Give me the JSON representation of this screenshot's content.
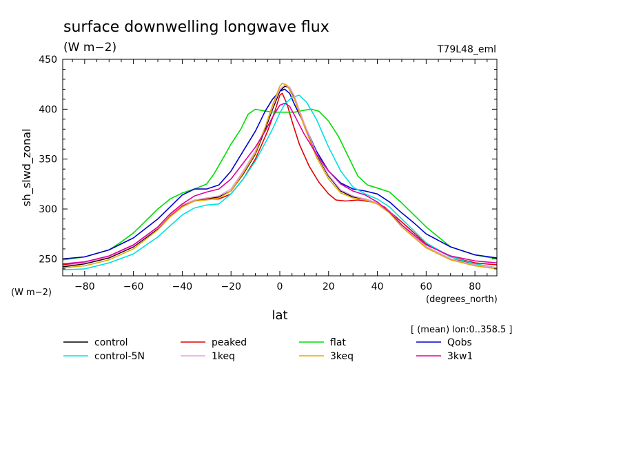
{
  "chart_data": {
    "type": "line",
    "title": "surface downwelling longwave flux",
    "subtitle": "(W m−2)",
    "run_label": "T79L48_eml",
    "ylabel": "sh_slwd_zonal",
    "yunits": "(W m−2)",
    "xlabel": "lat",
    "xunits": "(degrees_north)",
    "note": "[ (mean) lon:0..358.5 ]",
    "xlim": [
      -89,
      89
    ],
    "ylim": [
      233,
      450
    ],
    "xticks": [
      -80,
      -60,
      -40,
      -20,
      0,
      20,
      40,
      60,
      80
    ],
    "yticks": [
      250,
      300,
      350,
      400,
      450
    ],
    "grid": false,
    "legend_position": "bottom",
    "series": [
      {
        "name": "control",
        "color": "#000000",
        "points": [
          [
            -89,
            242
          ],
          [
            -80,
            245
          ],
          [
            -70,
            251
          ],
          [
            -60,
            262
          ],
          [
            -50,
            280
          ],
          [
            -45,
            293
          ],
          [
            -40,
            303
          ],
          [
            -35,
            308
          ],
          [
            -30,
            310
          ],
          [
            -25,
            312
          ],
          [
            -20,
            318
          ],
          [
            -15,
            335
          ],
          [
            -10,
            355
          ],
          [
            -6,
            380
          ],
          [
            -3,
            400
          ],
          [
            0,
            418
          ],
          [
            2,
            423
          ],
          [
            4,
            422
          ],
          [
            6,
            412
          ],
          [
            10,
            385
          ],
          [
            15,
            355
          ],
          [
            20,
            333
          ],
          [
            25,
            318
          ],
          [
            30,
            312
          ],
          [
            35,
            310
          ],
          [
            40,
            306
          ],
          [
            45,
            298
          ],
          [
            50,
            284
          ],
          [
            60,
            262
          ],
          [
            70,
            250
          ],
          [
            80,
            245
          ],
          [
            89,
            241
          ]
        ]
      },
      {
        "name": "peaked",
        "color": "#e00000",
        "points": [
          [
            -89,
            244
          ],
          [
            -80,
            246
          ],
          [
            -70,
            252
          ],
          [
            -60,
            263
          ],
          [
            -50,
            281
          ],
          [
            -45,
            293
          ],
          [
            -40,
            303
          ],
          [
            -35,
            308
          ],
          [
            -30,
            310
          ],
          [
            -25,
            310
          ],
          [
            -20,
            315
          ],
          [
            -15,
            330
          ],
          [
            -10,
            350
          ],
          [
            -5,
            378
          ],
          [
            -2,
            398
          ],
          [
            0,
            414
          ],
          [
            1,
            416
          ],
          [
            3,
            405
          ],
          [
            5,
            388
          ],
          [
            8,
            365
          ],
          [
            12,
            343
          ],
          [
            16,
            327
          ],
          [
            20,
            315
          ],
          [
            23,
            309
          ],
          [
            27,
            308
          ],
          [
            32,
            309
          ],
          [
            38,
            307
          ],
          [
            43,
            302
          ],
          [
            50,
            287
          ],
          [
            60,
            265
          ],
          [
            70,
            252
          ],
          [
            80,
            246
          ],
          [
            89,
            244
          ]
        ]
      },
      {
        "name": "flat",
        "color": "#00dd00",
        "points": [
          [
            -89,
            249
          ],
          [
            -80,
            252
          ],
          [
            -70,
            259
          ],
          [
            -65,
            267
          ],
          [
            -60,
            276
          ],
          [
            -55,
            288
          ],
          [
            -50,
            300
          ],
          [
            -45,
            310
          ],
          [
            -40,
            316
          ],
          [
            -35,
            320
          ],
          [
            -30,
            325
          ],
          [
            -27,
            335
          ],
          [
            -23,
            352
          ],
          [
            -20,
            365
          ],
          [
            -16,
            380
          ],
          [
            -13,
            395
          ],
          [
            -10,
            400
          ],
          [
            -6,
            398
          ],
          [
            -2,
            397
          ],
          [
            0,
            397
          ],
          [
            2,
            397
          ],
          [
            6,
            397
          ],
          [
            10,
            399
          ],
          [
            13,
            400
          ],
          [
            16,
            398
          ],
          [
            20,
            388
          ],
          [
            24,
            373
          ],
          [
            28,
            353
          ],
          [
            32,
            333
          ],
          [
            36,
            324
          ],
          [
            40,
            321
          ],
          [
            45,
            317
          ],
          [
            50,
            306
          ],
          [
            55,
            294
          ],
          [
            60,
            282
          ],
          [
            65,
            272
          ],
          [
            70,
            262
          ],
          [
            80,
            254
          ],
          [
            89,
            250
          ]
        ]
      },
      {
        "name": "Qobs",
        "color": "#0000cc",
        "points": [
          [
            -89,
            250
          ],
          [
            -80,
            252
          ],
          [
            -70,
            259
          ],
          [
            -60,
            271
          ],
          [
            -50,
            290
          ],
          [
            -45,
            302
          ],
          [
            -40,
            314
          ],
          [
            -35,
            320
          ],
          [
            -30,
            320
          ],
          [
            -25,
            324
          ],
          [
            -20,
            338
          ],
          [
            -15,
            358
          ],
          [
            -10,
            378
          ],
          [
            -6,
            398
          ],
          [
            -3,
            410
          ],
          [
            0,
            418
          ],
          [
            2,
            420
          ],
          [
            4,
            416
          ],
          [
            6,
            405
          ],
          [
            10,
            385
          ],
          [
            15,
            358
          ],
          [
            20,
            338
          ],
          [
            25,
            326
          ],
          [
            30,
            320
          ],
          [
            35,
            318
          ],
          [
            40,
            315
          ],
          [
            45,
            307
          ],
          [
            50,
            296
          ],
          [
            55,
            286
          ],
          [
            60,
            275
          ],
          [
            70,
            262
          ],
          [
            80,
            254
          ],
          [
            89,
            251
          ]
        ]
      },
      {
        "name": "control-5N",
        "color": "#00e0e0",
        "points": [
          [
            -89,
            239
          ],
          [
            -80,
            240
          ],
          [
            -70,
            246
          ],
          [
            -60,
            255
          ],
          [
            -50,
            272
          ],
          [
            -45,
            283
          ],
          [
            -40,
            294
          ],
          [
            -35,
            301
          ],
          [
            -30,
            304
          ],
          [
            -25,
            305
          ],
          [
            -20,
            315
          ],
          [
            -15,
            330
          ],
          [
            -10,
            348
          ],
          [
            -6,
            366
          ],
          [
            -3,
            380
          ],
          [
            0,
            396
          ],
          [
            2,
            405
          ],
          [
            5,
            412
          ],
          [
            8,
            414
          ],
          [
            11,
            407
          ],
          [
            15,
            390
          ],
          [
            20,
            362
          ],
          [
            25,
            338
          ],
          [
            30,
            322
          ],
          [
            35,
            315
          ],
          [
            40,
            310
          ],
          [
            45,
            302
          ],
          [
            50,
            290
          ],
          [
            60,
            266
          ],
          [
            70,
            252
          ],
          [
            80,
            245
          ],
          [
            89,
            241
          ]
        ]
      },
      {
        "name": "1keq",
        "color": "#e6a0e0",
        "points": [
          [
            -89,
            243
          ],
          [
            -80,
            246
          ],
          [
            -70,
            252
          ],
          [
            -60,
            263
          ],
          [
            -50,
            281
          ],
          [
            -45,
            294
          ],
          [
            -40,
            304
          ],
          [
            -35,
            309
          ],
          [
            -30,
            311
          ],
          [
            -25,
            313
          ],
          [
            -20,
            320
          ],
          [
            -15,
            338
          ],
          [
            -10,
            358
          ],
          [
            -6,
            382
          ],
          [
            -3,
            402
          ],
          [
            0,
            420
          ],
          [
            2,
            424
          ],
          [
            4,
            422
          ],
          [
            6,
            413
          ],
          [
            10,
            386
          ],
          [
            15,
            356
          ],
          [
            20,
            334
          ],
          [
            25,
            319
          ],
          [
            30,
            313
          ],
          [
            35,
            310
          ],
          [
            40,
            306
          ],
          [
            45,
            298
          ],
          [
            50,
            284
          ],
          [
            60,
            262
          ],
          [
            70,
            250
          ],
          [
            80,
            244
          ],
          [
            89,
            241
          ]
        ]
      },
      {
        "name": "3keq",
        "color": "#e6a800",
        "points": [
          [
            -89,
            241
          ],
          [
            -80,
            243
          ],
          [
            -70,
            249
          ],
          [
            -60,
            260
          ],
          [
            -50,
            279
          ],
          [
            -45,
            292
          ],
          [
            -40,
            302
          ],
          [
            -35,
            308
          ],
          [
            -30,
            309
          ],
          [
            -25,
            311
          ],
          [
            -20,
            318
          ],
          [
            -15,
            336
          ],
          [
            -10,
            356
          ],
          [
            -6,
            382
          ],
          [
            -3,
            404
          ],
          [
            0,
            423
          ],
          [
            1,
            426
          ],
          [
            3,
            424
          ],
          [
            6,
            410
          ],
          [
            10,
            383
          ],
          [
            15,
            352
          ],
          [
            20,
            330
          ],
          [
            25,
            316
          ],
          [
            30,
            311
          ],
          [
            35,
            309
          ],
          [
            40,
            305
          ],
          [
            45,
            296
          ],
          [
            50,
            282
          ],
          [
            60,
            261
          ],
          [
            70,
            249
          ],
          [
            80,
            243
          ],
          [
            89,
            240
          ]
        ]
      },
      {
        "name": "3kw1",
        "color": "#e000a0",
        "points": [
          [
            -89,
            245
          ],
          [
            -80,
            247
          ],
          [
            -70,
            253
          ],
          [
            -60,
            264
          ],
          [
            -50,
            282
          ],
          [
            -45,
            295
          ],
          [
            -40,
            305
          ],
          [
            -35,
            313
          ],
          [
            -30,
            317
          ],
          [
            -25,
            320
          ],
          [
            -20,
            330
          ],
          [
            -15,
            346
          ],
          [
            -10,
            362
          ],
          [
            -6,
            378
          ],
          [
            -3,
            392
          ],
          [
            0,
            404
          ],
          [
            2,
            406
          ],
          [
            4,
            403
          ],
          [
            6,
            394
          ],
          [
            10,
            375
          ],
          [
            15,
            355
          ],
          [
            20,
            338
          ],
          [
            25,
            325
          ],
          [
            30,
            318
          ],
          [
            35,
            314
          ],
          [
            40,
            307
          ],
          [
            45,
            297
          ],
          [
            50,
            284
          ],
          [
            60,
            264
          ],
          [
            70,
            253
          ],
          [
            80,
            248
          ],
          [
            89,
            246
          ]
        ]
      }
    ]
  }
}
